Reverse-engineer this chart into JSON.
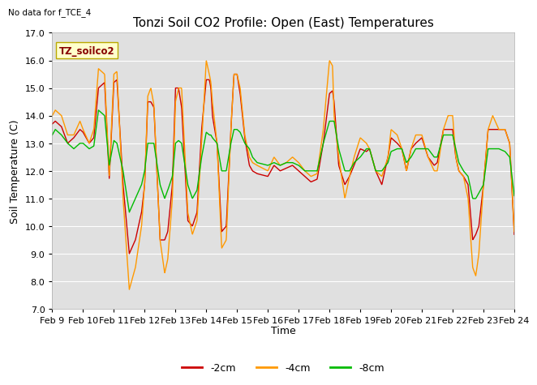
{
  "title": "Tonzi Soil CO2 Profile: Open (East) Temperatures",
  "no_data_text": "No data for f_TCE_4",
  "box_label": "TZ_soilco2",
  "ylabel": "Soil Temperature (C)",
  "xlabel": "Time",
  "ylim": [
    7.0,
    17.0
  ],
  "yticks": [
    7.0,
    8.0,
    9.0,
    10.0,
    11.0,
    12.0,
    13.0,
    14.0,
    15.0,
    16.0,
    17.0
  ],
  "xtick_labels": [
    "Feb 9",
    "Feb 10",
    "Feb 11",
    "Feb 12",
    "Feb 13",
    "Feb 14",
    "Feb 15",
    "Feb 16",
    "Feb 17",
    "Feb 18",
    "Feb 19",
    "Feb 20",
    "Feb 21",
    "Feb 22",
    "Feb 23",
    "Feb 24"
  ],
  "line_colors": {
    "neg2cm": "#cc0000",
    "neg4cm": "#ff9900",
    "neg8cm": "#00bb00"
  },
  "legend_labels": [
    "-2cm",
    "-4cm",
    "-8cm"
  ],
  "bg_color": "#e0e0e0",
  "fig_bg": "#ffffff",
  "linewidth": 1.0
}
